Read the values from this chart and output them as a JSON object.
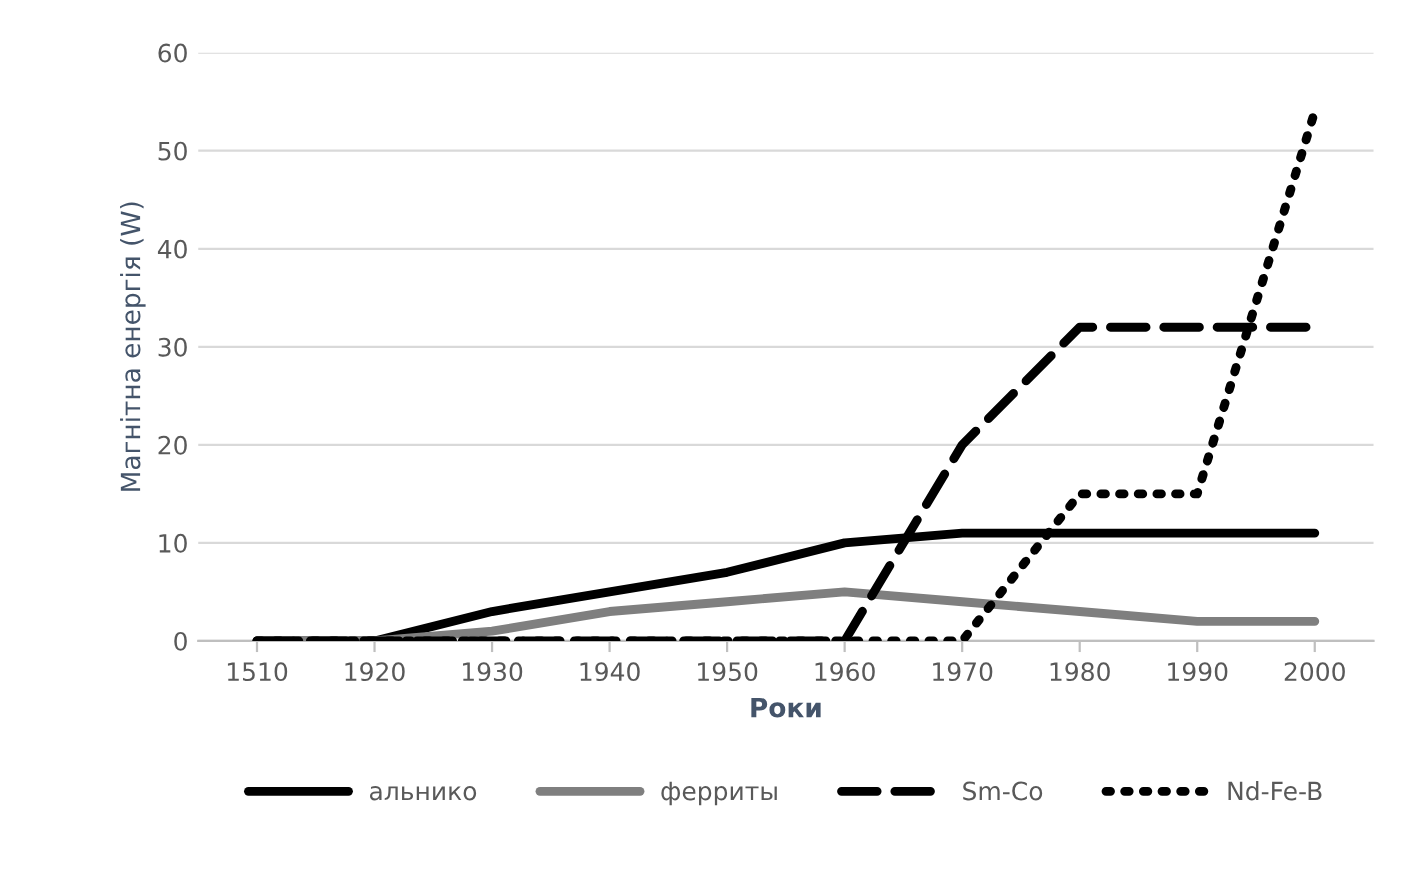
{
  "chart_data": {
    "type": "line",
    "xlabel": "Роки",
    "ylabel": "Магнітна енергія (W)",
    "categories": [
      "1510",
      "1920",
      "1930",
      "1940",
      "1950",
      "1960",
      "1970",
      "1980",
      "1990",
      "2000"
    ],
    "series": [
      {
        "name": "альнико",
        "color": "#000000",
        "line_style": "solid",
        "values": [
          0,
          0,
          3,
          5,
          7,
          10,
          11,
          11,
          11,
          11
        ]
      },
      {
        "name": "ферриты",
        "color": "#7f7f7f",
        "line_style": "solid",
        "values": [
          0,
          0,
          1,
          3,
          4,
          5,
          4,
          3,
          2,
          2
        ]
      },
      {
        "name": "Sm-Co",
        "color": "#000000",
        "line_style": "dashed",
        "values": [
          0,
          0,
          0,
          0,
          0,
          0,
          20,
          32,
          32,
          32
        ]
      },
      {
        "name": "Nd-Fe-B",
        "color": "#000000",
        "line_style": "dotted",
        "values": [
          0,
          0,
          0,
          0,
          0,
          0,
          0,
          15,
          15,
          54
        ]
      }
    ],
    "ylim": [
      0,
      60
    ],
    "yticks": [
      0,
      10,
      20,
      30,
      40,
      50,
      60
    ],
    "grid": "y",
    "legend": "bottom",
    "marker": "none"
  }
}
